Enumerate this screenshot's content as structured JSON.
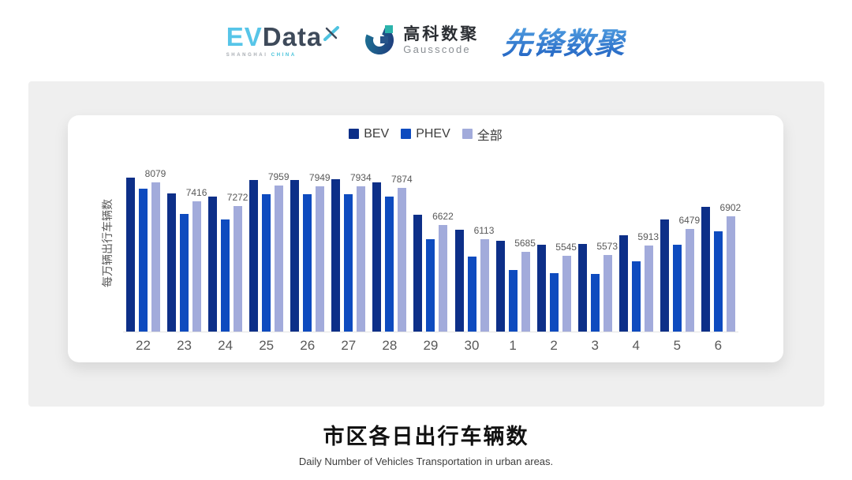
{
  "header": {
    "evdata": {
      "ev": "EV",
      "data": "Data",
      "sub_left": "SHANGHAI",
      "sub_right": "CHINA"
    },
    "gausscode": {
      "cn": "高科数聚",
      "en": "Gausscode"
    },
    "xianfeng": {
      "text": "先锋数聚"
    }
  },
  "chart_data": {
    "type": "bar",
    "ylabel": "每万辆出行车辆数",
    "categories": [
      "22",
      "23",
      "24",
      "25",
      "26",
      "27",
      "28",
      "29",
      "30",
      "1",
      "2",
      "3",
      "4",
      "5",
      "6"
    ],
    "series": [
      {
        "name": "BEV",
        "color": "#0d2f88",
        "labeled": false,
        "values_estimated": true,
        "values": [
          8230,
          7700,
          7580,
          8170,
          8170,
          8180,
          8070,
          6960,
          6450,
          6070,
          5930,
          5950,
          6250,
          6810,
          7240
        ]
      },
      {
        "name": "PHEV",
        "color": "#0e4bbf",
        "labeled": false,
        "values_estimated": true,
        "values": [
          7850,
          6990,
          6790,
          7670,
          7670,
          7660,
          7580,
          6120,
          5530,
          5070,
          4940,
          4930,
          5360,
          5930,
          6390
        ]
      },
      {
        "name": "全部",
        "color": "#a2abdb",
        "labeled": true,
        "values_estimated": false,
        "values": [
          8079,
          7416,
          7272,
          7959,
          7949,
          7934,
          7874,
          6622,
          6113,
          5685,
          5545,
          5573,
          5913,
          6479,
          6902
        ]
      }
    ],
    "ylim": [
      2940,
      8430
    ],
    "legend_position": "top",
    "grid": false,
    "baseline_color": "#e4e4e4",
    "axis_text_color": "#595959"
  },
  "footer": {
    "title": "市区各日出行车辆数",
    "subtitle": "Daily Number of Vehicles Transportation in urban areas."
  }
}
